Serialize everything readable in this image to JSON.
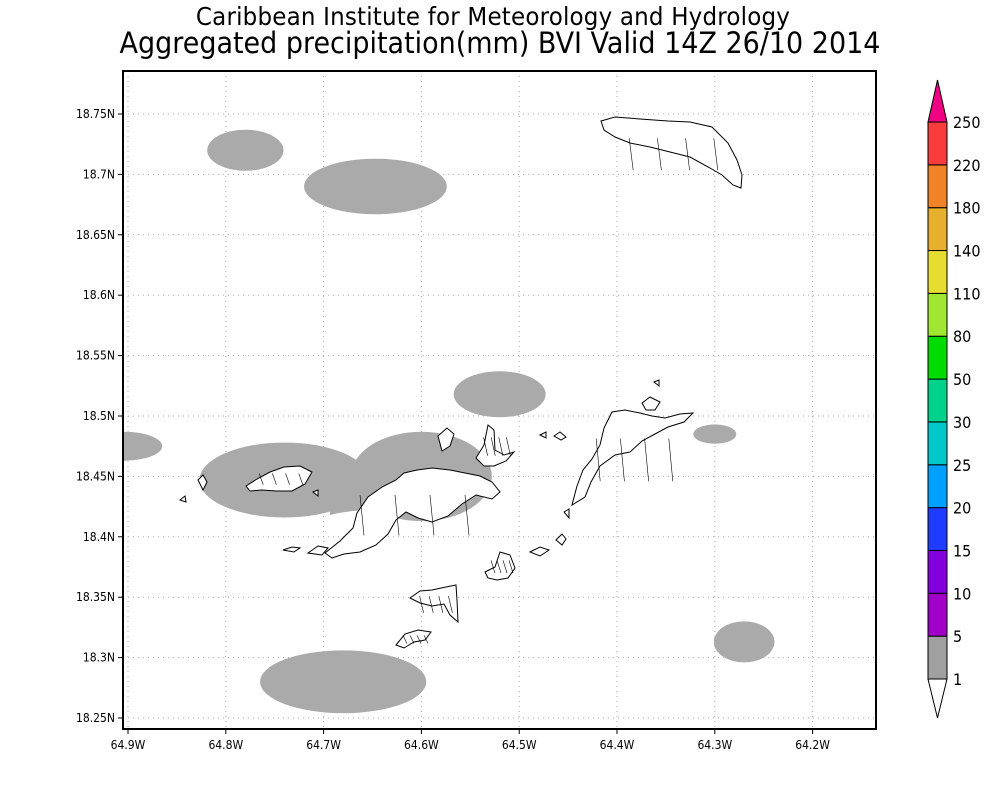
{
  "header": {
    "title_line1": "Caribbean Institute for Meteorology and Hydrology",
    "title_line2": "Aggregated precipitation(mm) BVI Valid 14Z 26/10 2014"
  },
  "chart_data": {
    "type": "heatmap",
    "title": "Aggregated precipitation(mm) BVI Valid 14Z 26/10 2014",
    "x_ticks": [
      "64.9W",
      "64.8W",
      "64.7W",
      "64.6W",
      "64.5W",
      "64.4W",
      "64.3W",
      "64.2W"
    ],
    "x_values": [
      -64.9,
      -64.8,
      -64.7,
      -64.6,
      -64.5,
      -64.4,
      -64.3,
      -64.2
    ],
    "y_ticks": [
      "18.25N",
      "18.3N",
      "18.35N",
      "18.4N",
      "18.45N",
      "18.5N",
      "18.55N",
      "18.6N",
      "18.65N",
      "18.7N",
      "18.75N"
    ],
    "y_values": [
      18.25,
      18.3,
      18.35,
      18.4,
      18.45,
      18.5,
      18.55,
      18.6,
      18.65,
      18.7,
      18.75
    ],
    "xlim": [
      -64.905,
      -64.135
    ],
    "ylim": [
      18.241,
      18.786
    ],
    "grid": true,
    "precip_areas_1_to_5mm": [
      {
        "lon": -64.78,
        "lat": 18.72,
        "dlon": 0.039,
        "dlat": 0.017
      },
      {
        "lon": -64.647,
        "lat": 18.69,
        "dlon": 0.073,
        "dlat": 0.023
      },
      {
        "lon": -64.905,
        "lat": 18.475,
        "dlon": 0.04,
        "dlat": 0.012
      },
      {
        "lon": -64.52,
        "lat": 18.518,
        "dlon": 0.047,
        "dlat": 0.019
      },
      {
        "lon": -64.74,
        "lat": 18.447,
        "dlon": 0.087,
        "dlat": 0.031
      },
      {
        "lon": -64.6,
        "lat": 18.45,
        "dlon": 0.072,
        "dlat": 0.037
      },
      {
        "lon": -64.3,
        "lat": 18.485,
        "dlon": 0.022,
        "dlat": 0.008
      },
      {
        "lon": -64.27,
        "lat": 18.313,
        "dlon": 0.031,
        "dlat": 0.017
      },
      {
        "lon": -64.68,
        "lat": 18.28,
        "dlon": 0.085,
        "dlat": 0.026
      }
    ],
    "colorbar": {
      "levels": [
        "1",
        "5",
        "10",
        "15",
        "20",
        "25",
        "30",
        "50",
        "80",
        "110",
        "140",
        "180",
        "220",
        "250"
      ],
      "colors": [
        "#a0a0a0",
        "#a000c8",
        "#8200dc",
        "#1e3cff",
        "#00a0ff",
        "#00c8c8",
        "#00d28c",
        "#00dc00",
        "#a0e632",
        "#e6dc32",
        "#e6af2d",
        "#f08228",
        "#fa3c3c",
        "#f00082"
      ],
      "below_color": "#ffffff"
    }
  },
  "colors": {
    "no_rain": "#ffffff",
    "light_rain": "#aaaaaa",
    "frame": "#000000",
    "grid": "#aaaaaa"
  }
}
